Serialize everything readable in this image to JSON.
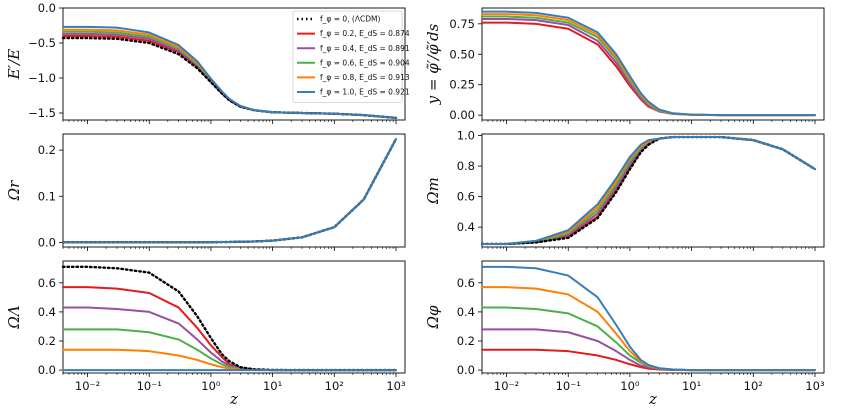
{
  "chart_data": {
    "type": "line",
    "xscale": "log",
    "xlabel": "z",
    "xticks": [
      0.01,
      0.1,
      1,
      10,
      100,
      1000
    ],
    "xtick_labels": [
      "10⁻²",
      "10⁻¹",
      "10⁰",
      "10¹",
      "10²",
      "10³"
    ],
    "legend": [
      {
        "label": "f_φ = 0, (ΛCDM)",
        "color": "#000000",
        "style": "dotted"
      },
      {
        "label": "f_φ = 0.2, E_dS = 0.874",
        "color": "#e41a1c",
        "style": "solid"
      },
      {
        "label": "f_φ = 0.4, E_dS = 0.891",
        "color": "#984ea3",
        "style": "solid"
      },
      {
        "label": "f_φ = 0.6, E_dS = 0.904",
        "color": "#4daf4a",
        "style": "solid"
      },
      {
        "label": "f_φ = 0.8, E_dS = 0.913",
        "color": "#ff7f00",
        "style": "solid"
      },
      {
        "label": "f_φ = 1.0, E_dS = 0.921",
        "color": "#377eb8",
        "style": "solid"
      }
    ],
    "legend_position": "top-right of first panel",
    "panels": [
      {
        "id": "dE",
        "ylabel": "E′/E",
        "ylim": [
          -1.6,
          0.0
        ],
        "yticks": [
          0.0,
          -0.5,
          -1.0,
          -1.5
        ],
        "ytick_labels": [
          "0.0",
          "−0.5",
          "−1.0",
          "−1.5"
        ]
      },
      {
        "id": "y",
        "ylabel": "y = φ̃′/φ̃′ds",
        "ylim": [
          -0.04,
          0.88
        ],
        "yticks": [
          0.0,
          0.25,
          0.5,
          0.75
        ],
        "ytick_labels": [
          "0.00",
          "0.25",
          "0.50",
          "0.75"
        ]
      },
      {
        "id": "Or",
        "ylabel": "Ωr",
        "ylim": [
          -0.01,
          0.235
        ],
        "yticks": [
          0.0,
          0.1,
          0.2
        ],
        "ytick_labels": [
          "0.0",
          "0.1",
          "0.2"
        ]
      },
      {
        "id": "Om",
        "ylabel": "Ωm",
        "ylim": [
          0.27,
          1.01
        ],
        "yticks": [
          0.4,
          0.6,
          0.8,
          1.0
        ],
        "ytick_labels": [
          "0.4",
          "0.6",
          "0.8",
          "1.0"
        ]
      },
      {
        "id": "OL",
        "ylabel": "ΩΛ",
        "ylim": [
          -0.02,
          0.75
        ],
        "yticks": [
          0.0,
          0.2,
          0.4,
          0.6
        ],
        "ytick_labels": [
          "0.0",
          "0.2",
          "0.4",
          "0.6"
        ]
      },
      {
        "id": "Ophi",
        "ylabel": "Ωφ",
        "ylim": [
          -0.02,
          0.75
        ],
        "yticks": [
          0.0,
          0.2,
          0.4,
          0.6
        ],
        "ytick_labels": [
          "0.0",
          "0.2",
          "0.4",
          "0.6"
        ]
      }
    ],
    "series": [
      {
        "name": "f_φ = 0 (ΛCDM)",
        "color": "#000000",
        "dashed": true,
        "z": [
          0.004,
          0.01,
          0.03,
          0.1,
          0.3,
          0.6,
          1,
          1.5,
          2,
          3,
          5,
          10,
          30,
          100,
          300,
          1000
        ],
        "dE": [
          -0.43,
          -0.43,
          -0.44,
          -0.5,
          -0.66,
          -0.86,
          -1.06,
          -1.22,
          -1.32,
          -1.41,
          -1.46,
          -1.49,
          -1.5,
          -1.51,
          -1.53,
          -1.57
        ],
        "y": null,
        "Or": [
          0.0001,
          0.0001,
          0.0001,
          0.0001,
          0.0002,
          0.0003,
          0.0005,
          0.0007,
          0.0009,
          0.0013,
          0.002,
          0.0037,
          0.011,
          0.033,
          0.093,
          0.224
        ],
        "Om": [
          0.29,
          0.29,
          0.3,
          0.33,
          0.46,
          0.63,
          0.78,
          0.89,
          0.94,
          0.98,
          0.99,
          0.99,
          0.99,
          0.97,
          0.91,
          0.78
        ],
        "OL": [
          0.71,
          0.71,
          0.7,
          0.67,
          0.54,
          0.37,
          0.22,
          0.11,
          0.06,
          0.02,
          0.005,
          0.001,
          0,
          0,
          0,
          0
        ],
        "Ophi": null
      },
      {
        "name": "f_φ = 0.2",
        "color": "#e41a1c",
        "dashed": false,
        "z": [
          0.004,
          0.01,
          0.03,
          0.1,
          0.3,
          0.6,
          1,
          1.5,
          2,
          3,
          5,
          10,
          30,
          100,
          300,
          1000
        ],
        "dE": [
          -0.4,
          -0.4,
          -0.41,
          -0.47,
          -0.63,
          -0.84,
          -1.05,
          -1.22,
          -1.32,
          -1.41,
          -1.46,
          -1.49,
          -1.5,
          -1.51,
          -1.53,
          -1.57
        ],
        "y": [
          0.76,
          0.76,
          0.75,
          0.71,
          0.58,
          0.4,
          0.24,
          0.13,
          0.07,
          0.03,
          0.01,
          0.003,
          0,
          0,
          0,
          0
        ],
        "Or": [
          0.0001,
          0.0001,
          0.0001,
          0.0001,
          0.0002,
          0.0003,
          0.0005,
          0.0007,
          0.0009,
          0.0013,
          0.002,
          0.0037,
          0.011,
          0.033,
          0.093,
          0.224
        ],
        "Om": [
          0.29,
          0.29,
          0.3,
          0.34,
          0.47,
          0.64,
          0.79,
          0.9,
          0.95,
          0.98,
          0.99,
          0.99,
          0.99,
          0.97,
          0.91,
          0.78
        ],
        "OL": [
          0.57,
          0.57,
          0.56,
          0.53,
          0.43,
          0.29,
          0.17,
          0.09,
          0.04,
          0.015,
          0.004,
          0,
          0,
          0,
          0,
          0
        ],
        "Ophi": [
          0.14,
          0.14,
          0.14,
          0.13,
          0.1,
          0.07,
          0.04,
          0.02,
          0.01,
          0.004,
          0.001,
          0,
          0,
          0,
          0,
          0
        ]
      },
      {
        "name": "f_φ = 0.4",
        "color": "#984ea3",
        "dashed": false,
        "z": [
          0.004,
          0.01,
          0.03,
          0.1,
          0.3,
          0.6,
          1,
          1.5,
          2,
          3,
          5,
          10,
          30,
          100,
          300,
          1000
        ],
        "dE": [
          -0.37,
          -0.37,
          -0.38,
          -0.44,
          -0.61,
          -0.82,
          -1.04,
          -1.21,
          -1.31,
          -1.41,
          -1.46,
          -1.49,
          -1.5,
          -1.51,
          -1.53,
          -1.57
        ],
        "y": [
          0.79,
          0.79,
          0.78,
          0.74,
          0.61,
          0.43,
          0.26,
          0.14,
          0.08,
          0.03,
          0.01,
          0.003,
          0,
          0,
          0,
          0
        ],
        "Or": [
          0.0001,
          0.0001,
          0.0001,
          0.0001,
          0.0002,
          0.0003,
          0.0005,
          0.0007,
          0.0009,
          0.0013,
          0.002,
          0.0037,
          0.011,
          0.033,
          0.093,
          0.224
        ],
        "Om": [
          0.29,
          0.29,
          0.3,
          0.35,
          0.49,
          0.66,
          0.81,
          0.91,
          0.95,
          0.98,
          0.99,
          0.99,
          0.99,
          0.97,
          0.91,
          0.78
        ],
        "OL": [
          0.43,
          0.43,
          0.42,
          0.4,
          0.32,
          0.21,
          0.12,
          0.06,
          0.03,
          0.01,
          0.003,
          0,
          0,
          0,
          0,
          0
        ],
        "Ophi": [
          0.28,
          0.28,
          0.28,
          0.26,
          0.2,
          0.13,
          0.07,
          0.03,
          0.02,
          0.007,
          0.002,
          0,
          0,
          0,
          0,
          0
        ]
      },
      {
        "name": "f_φ = 0.6",
        "color": "#4daf4a",
        "dashed": false,
        "z": [
          0.004,
          0.01,
          0.03,
          0.1,
          0.3,
          0.6,
          1,
          1.5,
          2,
          3,
          5,
          10,
          30,
          100,
          300,
          1000
        ],
        "dE": [
          -0.34,
          -0.34,
          -0.35,
          -0.41,
          -0.58,
          -0.8,
          -1.03,
          -1.2,
          -1.31,
          -1.4,
          -1.46,
          -1.49,
          -1.5,
          -1.51,
          -1.53,
          -1.57
        ],
        "y": [
          0.81,
          0.81,
          0.8,
          0.76,
          0.64,
          0.46,
          0.28,
          0.16,
          0.09,
          0.035,
          0.012,
          0.003,
          0,
          0,
          0,
          0
        ],
        "Or": [
          0.0001,
          0.0001,
          0.0001,
          0.0001,
          0.0002,
          0.0003,
          0.0005,
          0.0007,
          0.0009,
          0.0013,
          0.002,
          0.0037,
          0.011,
          0.033,
          0.093,
          0.224
        ],
        "Om": [
          0.29,
          0.29,
          0.3,
          0.36,
          0.51,
          0.68,
          0.83,
          0.92,
          0.96,
          0.98,
          0.99,
          0.99,
          0.99,
          0.97,
          0.91,
          0.78
        ],
        "OL": [
          0.28,
          0.28,
          0.28,
          0.26,
          0.21,
          0.14,
          0.08,
          0.04,
          0.02,
          0.007,
          0.002,
          0,
          0,
          0,
          0,
          0
        ],
        "Ophi": [
          0.43,
          0.43,
          0.42,
          0.39,
          0.3,
          0.19,
          0.1,
          0.05,
          0.025,
          0.01,
          0.003,
          0,
          0,
          0,
          0,
          0
        ]
      },
      {
        "name": "f_φ = 0.8",
        "color": "#ff7f00",
        "dashed": false,
        "z": [
          0.004,
          0.01,
          0.03,
          0.1,
          0.3,
          0.6,
          1,
          1.5,
          2,
          3,
          5,
          10,
          30,
          100,
          300,
          1000
        ],
        "dE": [
          -0.31,
          -0.31,
          -0.32,
          -0.38,
          -0.56,
          -0.78,
          -1.02,
          -1.2,
          -1.31,
          -1.4,
          -1.46,
          -1.49,
          -1.5,
          -1.51,
          -1.53,
          -1.57
        ],
        "y": [
          0.83,
          0.83,
          0.82,
          0.78,
          0.66,
          0.48,
          0.3,
          0.17,
          0.1,
          0.04,
          0.013,
          0.003,
          0,
          0,
          0,
          0
        ],
        "Or": [
          0.0001,
          0.0001,
          0.0001,
          0.0001,
          0.0002,
          0.0003,
          0.0005,
          0.0007,
          0.0009,
          0.0013,
          0.002,
          0.0037,
          0.011,
          0.033,
          0.093,
          0.224
        ],
        "Om": [
          0.29,
          0.29,
          0.31,
          0.37,
          0.53,
          0.7,
          0.85,
          0.93,
          0.96,
          0.98,
          0.99,
          0.99,
          0.99,
          0.97,
          0.91,
          0.78
        ],
        "OL": [
          0.14,
          0.14,
          0.14,
          0.13,
          0.1,
          0.07,
          0.04,
          0.02,
          0.01,
          0.003,
          0.001,
          0,
          0,
          0,
          0,
          0
        ],
        "Ophi": [
          0.57,
          0.57,
          0.56,
          0.52,
          0.4,
          0.25,
          0.13,
          0.06,
          0.03,
          0.012,
          0.004,
          0,
          0,
          0,
          0,
          0
        ]
      },
      {
        "name": "f_φ = 1.0",
        "color": "#377eb8",
        "dashed": false,
        "z": [
          0.004,
          0.01,
          0.03,
          0.1,
          0.3,
          0.6,
          1,
          1.5,
          2,
          3,
          5,
          10,
          30,
          100,
          300,
          1000
        ],
        "dE": [
          -0.27,
          -0.27,
          -0.28,
          -0.35,
          -0.53,
          -0.76,
          -1.01,
          -1.19,
          -1.3,
          -1.4,
          -1.46,
          -1.49,
          -1.5,
          -1.51,
          -1.53,
          -1.57
        ],
        "y": [
          0.85,
          0.85,
          0.84,
          0.8,
          0.68,
          0.5,
          0.32,
          0.18,
          0.11,
          0.045,
          0.015,
          0.004,
          0,
          0,
          0,
          0
        ],
        "Or": [
          0.0001,
          0.0001,
          0.0001,
          0.0001,
          0.0002,
          0.0003,
          0.0005,
          0.0007,
          0.0009,
          0.0013,
          0.002,
          0.0037,
          0.011,
          0.033,
          0.093,
          0.224
        ],
        "Om": [
          0.29,
          0.29,
          0.31,
          0.38,
          0.55,
          0.72,
          0.86,
          0.94,
          0.97,
          0.98,
          0.99,
          0.99,
          0.99,
          0.97,
          0.91,
          0.78
        ],
        "OL": [
          0.0,
          0.0,
          0.0,
          0.0,
          0.0,
          0.0,
          0.0,
          0.0,
          0.0,
          0.0,
          0.0,
          0,
          0,
          0,
          0,
          0
        ],
        "Ophi": [
          0.71,
          0.71,
          0.7,
          0.65,
          0.5,
          0.31,
          0.16,
          0.07,
          0.035,
          0.013,
          0.004,
          0,
          0,
          0,
          0,
          0
        ]
      }
    ]
  }
}
